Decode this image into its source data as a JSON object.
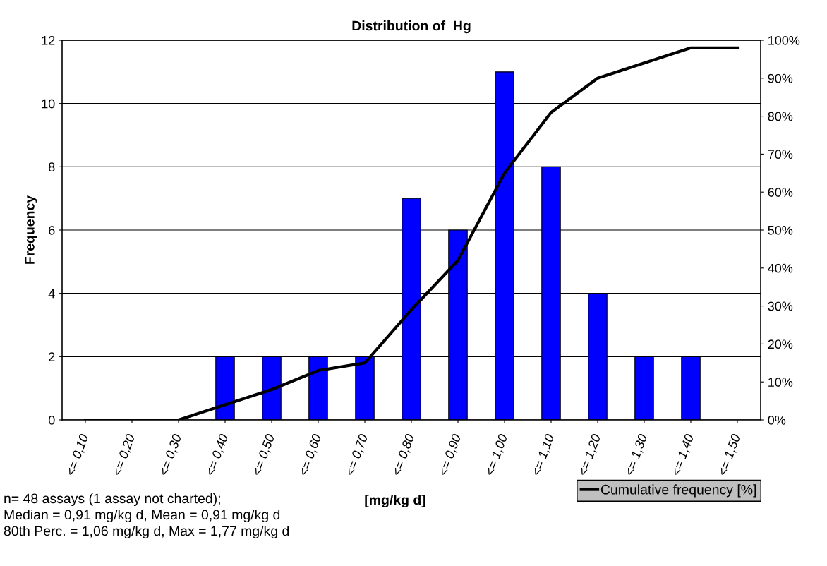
{
  "chart_data": {
    "type": "bar",
    "title": "Distribution of  Hg",
    "xlabel": "[mg/kg d]",
    "ylabel": "Frequency",
    "categories": [
      "<= 0,10",
      "<= 0,20",
      "<= 0,30",
      "<= 0,40",
      "<= 0,50",
      "<= 0,60",
      "<= 0,70",
      "<= 0,80",
      "<= 0,90",
      "<= 1,00",
      "<= 1,10",
      "<= 1,20",
      "<= 1,30",
      "<= 1,40",
      "<= 1,50"
    ],
    "series": [
      {
        "color": "#0000ff",
        "values": [
          0,
          0,
          0,
          2,
          2,
          2,
          2,
          7,
          6,
          11,
          8,
          4,
          2,
          2,
          0
        ]
      },
      {
        "type": "line",
        "name": "Cumulative frequency [%]",
        "axis": "y2",
        "color": "#000000",
        "values": [
          0,
          0,
          0,
          4,
          8,
          13,
          15,
          29,
          42,
          65,
          81,
          90,
          94,
          98,
          98
        ]
      }
    ],
    "ylim": [
      0,
      12
    ],
    "yticks": [
      0,
      2,
      4,
      6,
      8,
      10,
      12
    ],
    "y2lim": [
      0,
      100
    ],
    "y2ticks": [
      {
        "value": 0,
        "label": "0%"
      },
      {
        "value": 10,
        "label": "10%"
      },
      {
        "value": 20,
        "label": "20%"
      },
      {
        "value": 30,
        "label": "30%"
      },
      {
        "value": 40,
        "label": "40%"
      },
      {
        "value": 50,
        "label": "50%"
      },
      {
        "value": 60,
        "label": "60%"
      },
      {
        "value": 70,
        "label": "70%"
      },
      {
        "value": 80,
        "label": "80%"
      },
      {
        "value": 90,
        "label": "90%"
      },
      {
        "value": 100,
        "label": "100%"
      }
    ],
    "grid": "y",
    "legend": "bottom right",
    "marker": "none",
    "line_style": "solid",
    "annotations": [
      "n= 48 assays (1 assay not charted);",
      "Median = 0,91 mg/kg d, Mean = 0,91 mg/kg d",
      "80th Perc. = 1,06 mg/kg d, Max = 1,77 mg/kg d"
    ]
  }
}
